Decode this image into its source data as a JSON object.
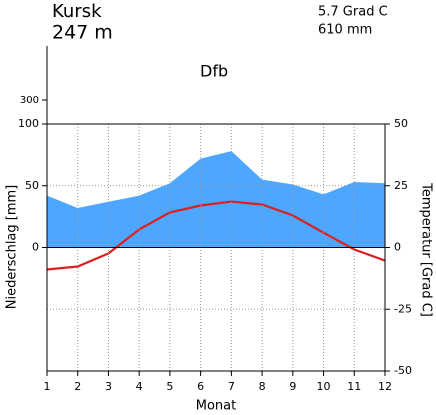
{
  "chart_data": {
    "type": "climate",
    "station": "Kursk",
    "elevation": "247 m",
    "mean_temperature": "5.7 Grad C",
    "annual_precipitation": "610 mm",
    "climate_class": "Dfb",
    "y_label": "Niederschlag [mm]",
    "y2_label": "Temperatur [Grad C]",
    "x_label": "Monat",
    "x": [
      1,
      2,
      3,
      4,
      5,
      6,
      7,
      8,
      9,
      10,
      11,
      12
    ],
    "xlim": [
      1,
      12
    ],
    "xticks": [
      1,
      2,
      3,
      4,
      5,
      6,
      7,
      8,
      9,
      10,
      11,
      12
    ],
    "ylim": [
      -100,
      100
    ],
    "yticks": [
      0,
      50,
      100
    ],
    "y_upper_lim": [
      100,
      750
    ],
    "y_upper_ticks": [
      300
    ],
    "y2lim": [
      -50,
      50
    ],
    "y2ticks": [
      -50,
      -25,
      0,
      25,
      50
    ],
    "grid": true,
    "series": [
      {
        "kind": "area",
        "color": "#4da6ff",
        "values": [
          42,
          32,
          37,
          42,
          52,
          72,
          78,
          55,
          51,
          43,
          53,
          52
        ]
      },
      {
        "kind": "line",
        "color": "#dd1f1f",
        "axis": "y2",
        "values": [
          -8.9,
          -7.7,
          -2.4,
          7.3,
          14.2,
          17.0,
          18.6,
          17.4,
          13.0,
          6.0,
          -0.8,
          -5.3
        ]
      }
    ]
  }
}
